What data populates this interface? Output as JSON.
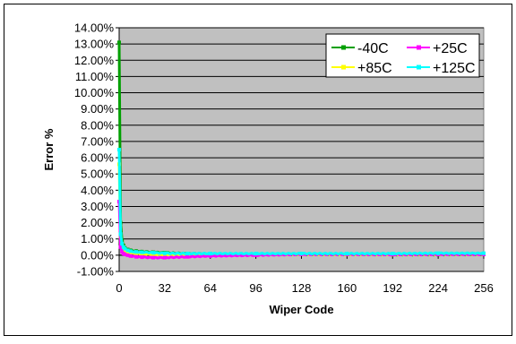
{
  "chart_data": {
    "type": "line",
    "title": "",
    "xlabel": "Wiper Code",
    "ylabel": "Error %",
    "xlim": [
      0,
      256
    ],
    "ylim": [
      -1.0,
      14.0
    ],
    "grid": true,
    "legend_position": "top-right",
    "x_ticks": [
      "0",
      "32",
      "64",
      "96",
      "128",
      "160",
      "192",
      "224",
      "256"
    ],
    "y_ticks": [
      "-1.00%",
      "0.00%",
      "1.00%",
      "2.00%",
      "3.00%",
      "4.00%",
      "5.00%",
      "6.00%",
      "7.00%",
      "8.00%",
      "9.00%",
      "10.00%",
      "11.00%",
      "12.00%",
      "13.00%",
      "14.00%"
    ],
    "x": [
      0,
      1,
      2,
      3,
      4,
      6,
      8,
      12,
      16,
      24,
      32,
      48,
      64,
      96,
      128,
      160,
      192,
      224,
      256
    ],
    "series": [
      {
        "name": "-40C",
        "color": "#00a000",
        "values": [
          13.1,
          2.0,
          0.9,
          0.6,
          0.45,
          0.35,
          0.3,
          0.25,
          0.22,
          0.18,
          0.15,
          0.1,
          0.08,
          0.06,
          0.05,
          0.05,
          0.04,
          0.04,
          0.05
        ]
      },
      {
        "name": "+25C",
        "color": "#ff00ff",
        "values": [
          3.3,
          0.5,
          0.2,
          0.1,
          0.05,
          0.0,
          -0.05,
          -0.1,
          -0.12,
          -0.15,
          -0.15,
          -0.1,
          -0.05,
          0.0,
          0.05,
          0.05,
          0.04,
          0.05,
          0.05
        ]
      },
      {
        "name": "+85C",
        "color": "#ffff00",
        "values": [
          5.6,
          1.1,
          0.6,
          0.4,
          0.3,
          0.2,
          0.15,
          0.1,
          0.08,
          0.05,
          0.03,
          0.02,
          0.02,
          0.05,
          0.05,
          0.04,
          0.04,
          0.05,
          0.06
        ]
      },
      {
        "name": "+125C",
        "color": "#00ffff",
        "values": [
          6.5,
          1.3,
          0.7,
          0.5,
          0.4,
          0.3,
          0.25,
          0.2,
          0.18,
          0.15,
          0.12,
          0.1,
          0.1,
          0.1,
          0.1,
          0.1,
          0.1,
          0.12,
          0.12
        ]
      }
    ]
  }
}
